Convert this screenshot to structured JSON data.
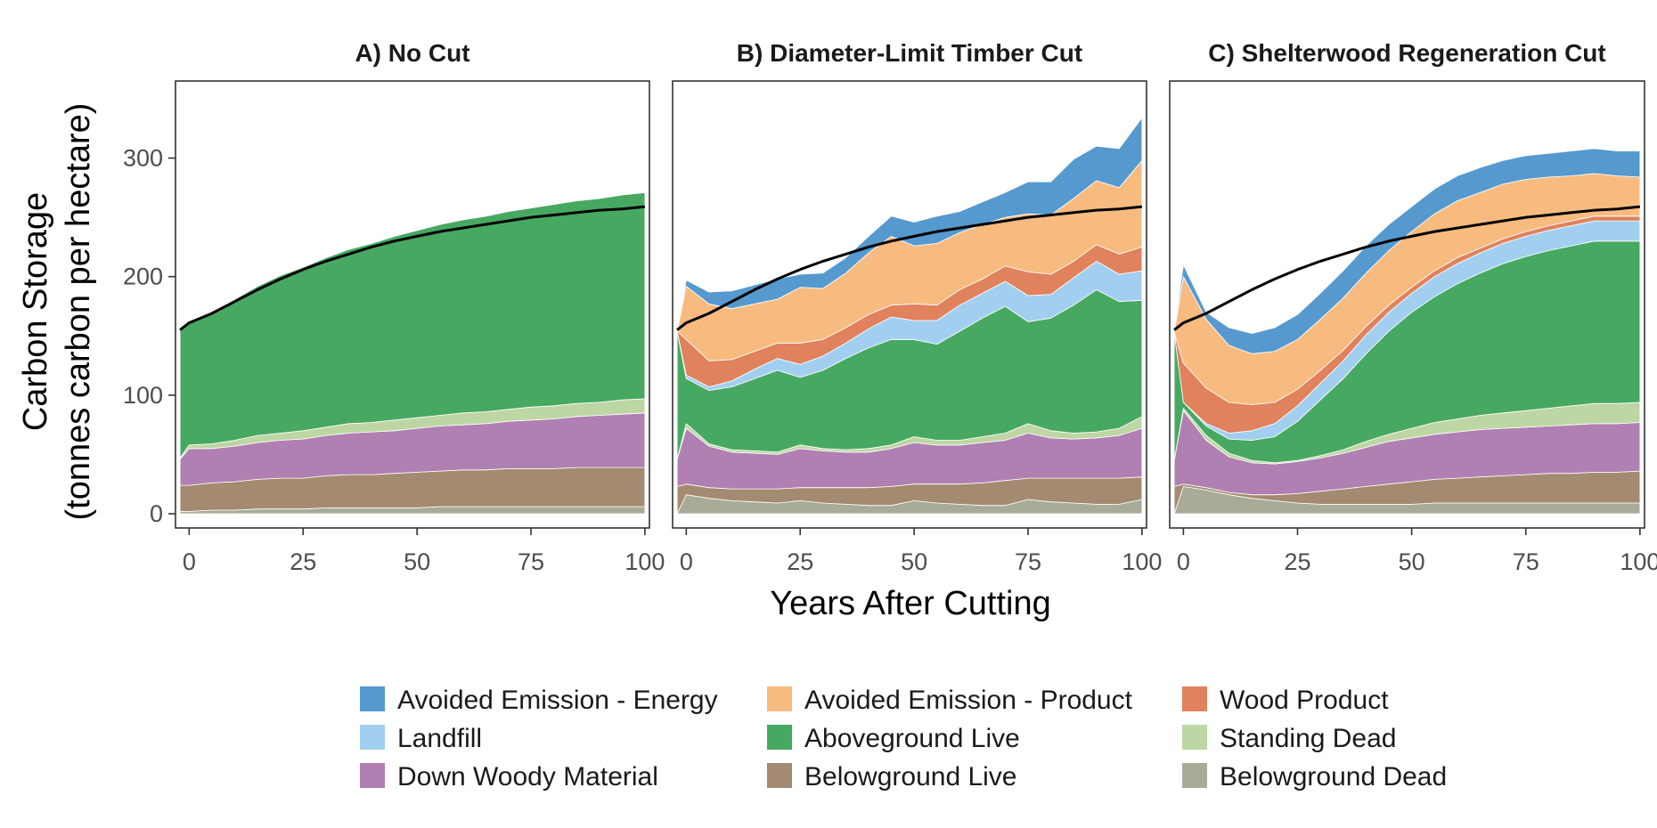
{
  "chart_data": {
    "type": "area",
    "stacked": true,
    "xlabel": "Years After Cutting",
    "ylabel": "Carbon Storage",
    "ylabel_line2": "(tonnes carbon per hectare)",
    "xlim": [
      -3,
      101
    ],
    "ylim": [
      -12,
      365
    ],
    "xticks": [
      "0",
      "25",
      "50",
      "75",
      "100"
    ],
    "xtick_values": [
      0,
      25,
      50,
      75,
      100
    ],
    "yticks": [
      "0",
      "100",
      "200",
      "300"
    ],
    "ytick_values": [
      0,
      100,
      200,
      300
    ],
    "grid": false,
    "legend_position": "bottom",
    "series_order_bottom_to_top": [
      "Belowground Dead",
      "Belowground Live",
      "Down Woody Material",
      "Standing Dead",
      "Aboveground Live",
      "Landfill",
      "Wood Product",
      "Avoided Emission - Product",
      "Avoided Emission - Energy"
    ],
    "colors": {
      "Avoided Emission - Energy": "#5599cf",
      "Avoided Emission - Product": "#f7bb80",
      "Wood Product": "#df825d",
      "Landfill": "#a2cfef",
      "Aboveground Live": "#47a862",
      "Standing Dead": "#bdd6a4",
      "Down Woody Material": "#b080b2",
      "Belowground Live": "#a48a70",
      "Belowground Dead": "#a9ab99"
    },
    "legend": [
      "Avoided Emission - Energy",
      "Avoided Emission - Product",
      "Wood Product",
      "Landfill",
      "Aboveground Live",
      "Standing Dead",
      "Down Woody Material",
      "Belowground Live",
      "Belowground Dead"
    ],
    "panels": [
      {
        "title": "A) No Cut",
        "x": [
          -2,
          0,
          5,
          10,
          15,
          20,
          25,
          30,
          35,
          40,
          45,
          50,
          55,
          60,
          65,
          70,
          75,
          80,
          85,
          90,
          95,
          100
        ],
        "series": {
          "Belowground Dead": [
            2,
            2,
            3,
            3,
            4,
            4,
            4,
            5,
            5,
            5,
            5,
            5,
            6,
            6,
            6,
            6,
            6,
            6,
            6,
            6,
            6,
            6
          ],
          "Belowground Live": [
            22,
            22,
            23,
            24,
            25,
            26,
            26,
            27,
            28,
            28,
            29,
            30,
            30,
            31,
            31,
            32,
            32,
            32,
            33,
            33,
            33,
            33
          ],
          "Down Woody Material": [
            22,
            31,
            29,
            30,
            31,
            32,
            33,
            34,
            35,
            36,
            36,
            37,
            38,
            38,
            39,
            40,
            41,
            42,
            43,
            44,
            45,
            46
          ],
          "Standing Dead": [
            1,
            3,
            4,
            5,
            6,
            6,
            7,
            7,
            8,
            8,
            9,
            9,
            9,
            10,
            10,
            10,
            11,
            11,
            11,
            11,
            12,
            12
          ],
          "Aboveground Live": [
            108,
            103,
            111,
            119,
            126,
            133,
            138,
            143,
            147,
            151,
            155,
            158,
            161,
            163,
            165,
            167,
            168,
            170,
            171,
            172,
            173,
            174
          ],
          "Landfill": [
            0,
            0,
            0,
            0,
            0,
            0,
            0,
            0,
            0,
            0,
            0,
            0,
            0,
            0,
            0,
            0,
            0,
            0,
            0,
            0,
            0,
            0
          ],
          "Wood Product": [
            0,
            0,
            0,
            0,
            0,
            0,
            0,
            0,
            0,
            0,
            0,
            0,
            0,
            0,
            0,
            0,
            0,
            0,
            0,
            0,
            0,
            0
          ],
          "Avoided Emission - Product": [
            0,
            0,
            0,
            0,
            0,
            0,
            0,
            0,
            0,
            0,
            0,
            0,
            0,
            0,
            0,
            0,
            0,
            0,
            0,
            0,
            0,
            0
          ],
          "Avoided Emission - Energy": [
            0,
            0,
            0,
            0,
            0,
            0,
            0,
            0,
            0,
            0,
            0,
            0,
            0,
            0,
            0,
            0,
            0,
            0,
            0,
            0,
            0,
            0
          ]
        },
        "no_cut_line": [
          155,
          161,
          169,
          179,
          189,
          198,
          206,
          213,
          219,
          225,
          230,
          234,
          238,
          241,
          244,
          247,
          250,
          252,
          254,
          256,
          257,
          259
        ]
      },
      {
        "title": "B) Diameter-Limit Timber Cut",
        "x": [
          -2,
          0,
          5,
          10,
          15,
          20,
          25,
          30,
          35,
          40,
          45,
          50,
          55,
          60,
          65,
          70,
          75,
          80,
          85,
          90,
          95,
          100
        ],
        "series": {
          "Belowground Dead": [
            0,
            16,
            13,
            11,
            10,
            9,
            11,
            9,
            8,
            7,
            7,
            11,
            9,
            8,
            7,
            7,
            12,
            10,
            9,
            8,
            8,
            12
          ],
          "Belowground Live": [
            23,
            9,
            9,
            10,
            11,
            12,
            11,
            13,
            14,
            15,
            16,
            14,
            16,
            17,
            19,
            21,
            18,
            20,
            21,
            22,
            22,
            19
          ],
          "Down Woody Material": [
            23,
            47,
            35,
            31,
            30,
            29,
            33,
            31,
            30,
            30,
            32,
            35,
            33,
            33,
            34,
            34,
            38,
            34,
            33,
            34,
            36,
            41
          ],
          "Standing Dead": [
            0,
            4,
            2,
            2,
            2,
            2,
            3,
            2,
            2,
            3,
            3,
            5,
            4,
            4,
            5,
            6,
            8,
            6,
            5,
            5,
            6,
            10
          ],
          "Aboveground Live": [
            108,
            38,
            45,
            53,
            61,
            69,
            57,
            66,
            77,
            85,
            89,
            82,
            81,
            92,
            100,
            107,
            86,
            95,
            108,
            120,
            107,
            98
          ],
          "Landfill": [
            0,
            3,
            3,
            5,
            8,
            10,
            11,
            12,
            13,
            16,
            19,
            16,
            20,
            22,
            21,
            21,
            22,
            20,
            23,
            24,
            23,
            25
          ],
          "Wood Product": [
            0,
            30,
            22,
            18,
            15,
            13,
            18,
            14,
            13,
            12,
            10,
            14,
            13,
            13,
            12,
            13,
            20,
            17,
            14,
            14,
            17,
            20
          ],
          "Avoided Emission - Product": [
            0,
            45,
            48,
            43,
            40,
            37,
            47,
            43,
            46,
            52,
            58,
            49,
            52,
            48,
            46,
            41,
            49,
            50,
            53,
            54,
            56,
            73
          ],
          "Avoided Emission - Energy": [
            0,
            5,
            10,
            15,
            16,
            17,
            11,
            13,
            13,
            14,
            17,
            20,
            23,
            18,
            19,
            21,
            27,
            28,
            33,
            29,
            33,
            36
          ]
        },
        "no_cut_line": [
          155,
          161,
          169,
          179,
          189,
          198,
          206,
          213,
          219,
          225,
          230,
          234,
          238,
          241,
          244,
          247,
          250,
          252,
          254,
          256,
          257,
          259
        ]
      },
      {
        "title": "C) Shelterwood Regeneration Cut",
        "x": [
          -2,
          0,
          5,
          10,
          15,
          20,
          25,
          30,
          35,
          40,
          45,
          50,
          55,
          60,
          65,
          70,
          75,
          80,
          85,
          90,
          95,
          100
        ],
        "series": {
          "Belowground Dead": [
            0,
            23,
            20,
            16,
            13,
            11,
            9,
            8,
            8,
            8,
            8,
            8,
            9,
            9,
            9,
            9,
            9,
            9,
            9,
            9,
            9,
            9
          ],
          "Belowground Live": [
            23,
            2,
            2,
            2,
            3,
            5,
            8,
            11,
            13,
            15,
            17,
            19,
            20,
            21,
            22,
            23,
            24,
            25,
            25,
            26,
            26,
            27
          ],
          "Down Woody Material": [
            22,
            62,
            40,
            30,
            27,
            26,
            27,
            28,
            30,
            33,
            36,
            37,
            38,
            39,
            40,
            40,
            40,
            40,
            41,
            41,
            41,
            41
          ],
          "Standing Dead": [
            0,
            2,
            4,
            3,
            2,
            1,
            1,
            2,
            3,
            5,
            6,
            8,
            10,
            11,
            12,
            13,
            14,
            15,
            16,
            17,
            17,
            17
          ],
          "Aboveground Live": [
            108,
            5,
            8,
            12,
            17,
            22,
            33,
            47,
            60,
            74,
            87,
            98,
            106,
            114,
            120,
            126,
            130,
            133,
            135,
            137,
            137,
            136
          ],
          "Landfill": [
            0,
            0,
            2,
            5,
            8,
            11,
            13,
            14,
            15,
            16,
            16,
            16,
            17,
            17,
            17,
            17,
            17,
            17,
            17,
            17,
            17,
            17
          ],
          "Wood Product": [
            0,
            33,
            30,
            26,
            22,
            18,
            14,
            11,
            9,
            7,
            6,
            5,
            5,
            5,
            4,
            4,
            4,
            4,
            4,
            4,
            4,
            4
          ],
          "Avoided Emission - Product": [
            0,
            73,
            58,
            48,
            43,
            43,
            42,
            43,
            44,
            45,
            46,
            47,
            48,
            48,
            47,
            46,
            44,
            41,
            38,
            36,
            34,
            33
          ],
          "Avoided Emission - Energy": [
            0,
            10,
            6,
            15,
            17,
            20,
            21,
            22,
            23,
            23,
            22,
            21,
            21,
            21,
            21,
            20,
            20,
            20,
            21,
            21,
            21,
            22
          ]
        },
        "no_cut_line": [
          155,
          161,
          169,
          179,
          189,
          198,
          206,
          213,
          219,
          225,
          230,
          234,
          238,
          241,
          244,
          247,
          250,
          252,
          254,
          256,
          257,
          259
        ]
      }
    ]
  }
}
